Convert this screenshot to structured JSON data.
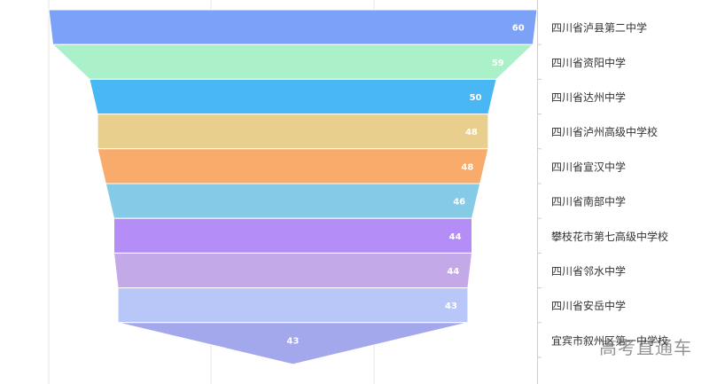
{
  "chart_data": {
    "type": "funnel",
    "categories": [
      "四川省泸县第二中学",
      "四川省资阳中学",
      "四川省达州中学",
      "四川省泸州高级中学校",
      "四川省宣汉中学",
      "四川省南部中学",
      "攀枝花市第七高级中学校",
      "四川省邻水中学",
      "四川省安岳中学",
      "宜宾市叙州区第一中学校"
    ],
    "values": [
      60,
      59,
      50,
      48,
      48,
      46,
      44,
      44,
      43,
      43
    ],
    "colors": [
      "#7ca2f7",
      "#aaf0c8",
      "#4ab7f5",
      "#e9cf8d",
      "#f9ab6b",
      "#85cbe8",
      "#b48df6",
      "#c4a9e8",
      "#b8c6f8",
      "#a3a8ec"
    ],
    "label_color": "#ffffff",
    "legend_position": "right",
    "grid": true
  },
  "watermark": "高考直通车"
}
